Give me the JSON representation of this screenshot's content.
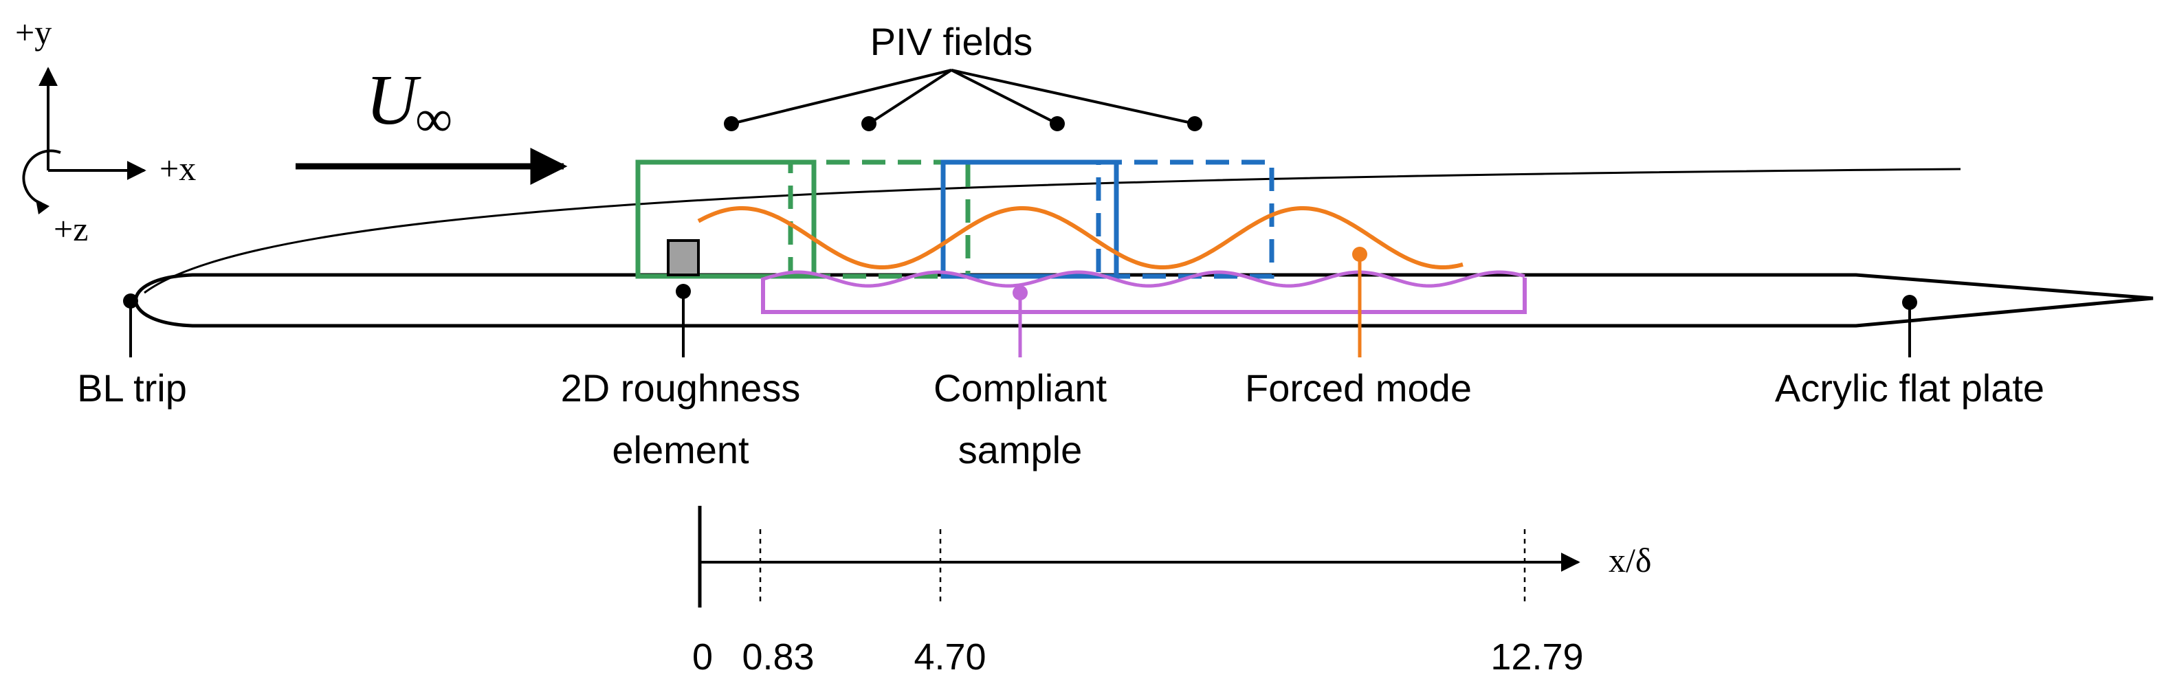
{
  "axes": {
    "y_label": "+y",
    "x_label": "+x",
    "z_label": "+z"
  },
  "flow": {
    "symbol": "U",
    "subscript": "∞"
  },
  "labels": {
    "piv_fields": "PIV fields",
    "bl_trip": "BL trip",
    "roughness_line1": "2D roughness",
    "roughness_line2": "element",
    "compliant_line1": "Compliant",
    "compliant_line2": "sample",
    "forced_mode": "Forced mode",
    "acrylic_plate": "Acrylic flat plate"
  },
  "scale": {
    "axis_label": "x/δ",
    "ticks": [
      "0",
      "0.83",
      "4.70",
      "12.79"
    ]
  },
  "colors": {
    "piv_green": "#3a9c58",
    "piv_blue": "#1f6fc0",
    "forced_mode": "#f07d1c",
    "compliant": "#c068d8",
    "roughness": "#a0a0a0",
    "ink": "#000000"
  }
}
